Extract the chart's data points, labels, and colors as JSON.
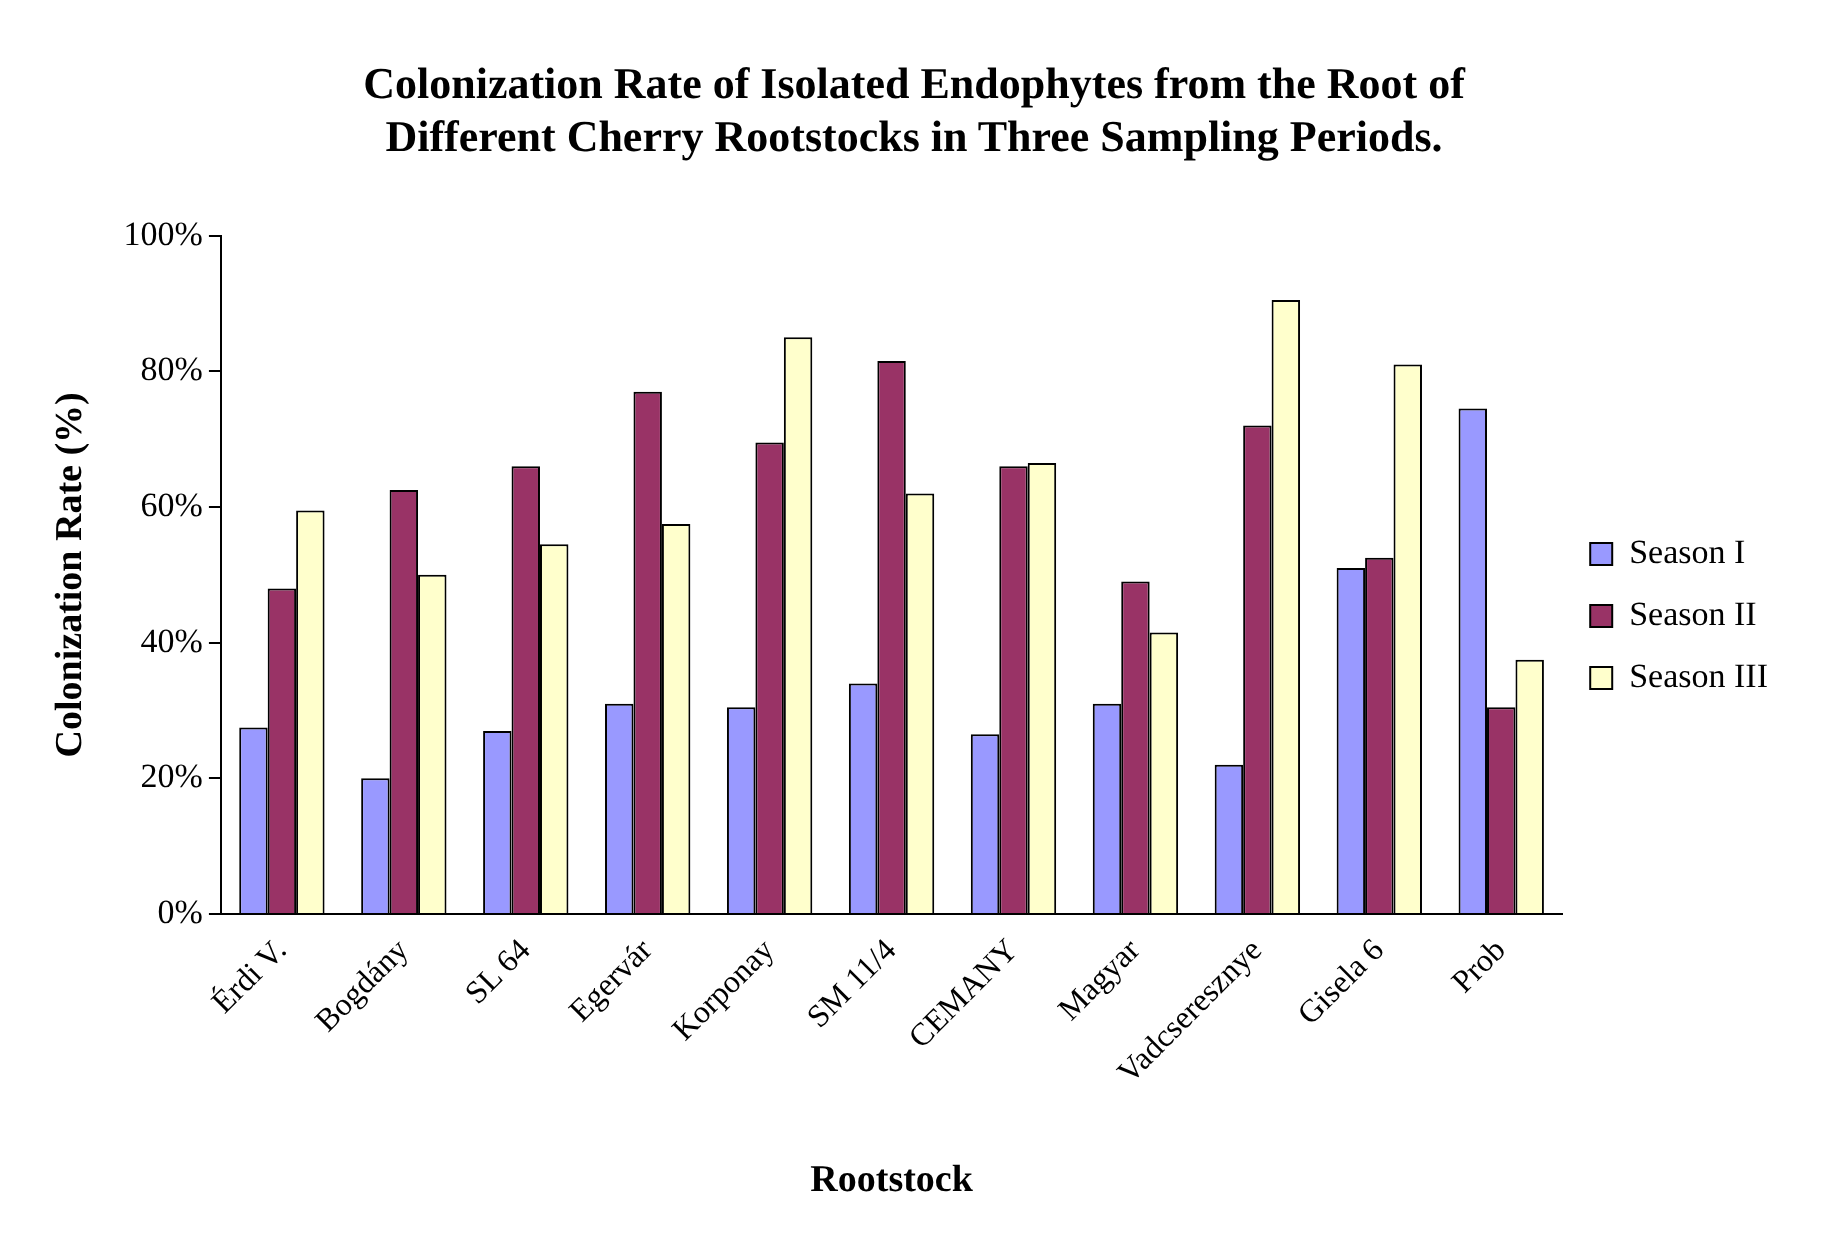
{
  "chart_data": {
    "type": "bar",
    "title": "Colonization Rate of Isolated Endophytes from the Root of Different Cherry Rootstocks in Three Sampling Periods.",
    "xlabel": "Rootstock",
    "ylabel": "Colonization Rate (%)",
    "categories": [
      "Érdi V.",
      "Bogdány",
      "SL 64",
      "Egervár",
      "Korponay",
      "SM 11/4",
      "CEMANY",
      "Magyar",
      "Vadcseresznye",
      "Gisela 6",
      "Prob"
    ],
    "series": [
      {
        "name": "Season I",
        "color": "#9999ff",
        "values": [
          27.5,
          20,
          27,
          31,
          30.5,
          34,
          26.5,
          31,
          22,
          51,
          74.5
        ]
      },
      {
        "name": "Season II",
        "color": "#993366",
        "values": [
          48,
          62.5,
          66,
          77,
          69.5,
          81.5,
          66,
          49,
          72,
          52.5,
          30.5
        ]
      },
      {
        "name": "Season III",
        "color": "#ffffcc",
        "values": [
          59.5,
          50,
          54.5,
          57.5,
          85,
          62,
          66.5,
          41.5,
          90.5,
          81,
          37.5
        ]
      }
    ],
    "ylim": [
      0,
      100
    ],
    "yticks": [
      {
        "value": 0,
        "label": "0%"
      },
      {
        "value": 20,
        "label": "20%"
      },
      {
        "value": 40,
        "label": "40%"
      },
      {
        "value": 60,
        "label": "60%"
      },
      {
        "value": 80,
        "label": "80%"
      },
      {
        "value": 100,
        "label": "100%"
      }
    ],
    "grid": false,
    "legend": "right"
  }
}
